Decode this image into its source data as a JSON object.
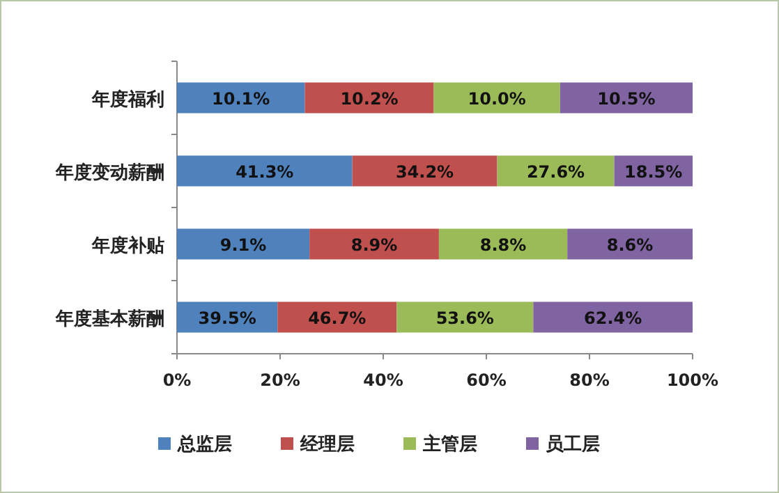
{
  "chart_data": {
    "type": "bar",
    "orientation": "horizontal",
    "stacked": true,
    "categories": [
      "年度福利",
      "年度变动薪酬",
      "年度补贴",
      "年度基本薪酬"
    ],
    "series": [
      {
        "name": "总监层",
        "color": "#4f81bd",
        "values": [
          24.8,
          34.0,
          25.7,
          19.5
        ]
      },
      {
        "name": "经理层",
        "color": "#c0504d",
        "values": [
          25.0,
          28.1,
          25.1,
          23.1
        ]
      },
      {
        "name": "主管层",
        "color": "#9bbb59",
        "values": [
          24.5,
          22.7,
          24.9,
          26.5
        ]
      },
      {
        "name": "员工层",
        "color": "#8064a2",
        "values": [
          25.7,
          15.2,
          24.3,
          30.9
        ]
      }
    ],
    "annotations": [
      "10.1%",
      "10.2%",
      "10.0%",
      "10.5%",
      "41.3%",
      "34.2%",
      "27.6%",
      "18.5%",
      "9.1%",
      "8.9%",
      "8.8%",
      "8.6%",
      "39.5%",
      "46.7%",
      "53.6%",
      "62.4%"
    ],
    "xlim": [
      0,
      100
    ],
    "xticks": [
      {
        "value": 0,
        "label": "0%"
      },
      {
        "value": 20,
        "label": "20%"
      },
      {
        "value": 40,
        "label": "40%"
      },
      {
        "value": 60,
        "label": "60%"
      },
      {
        "value": 80,
        "label": "80%"
      },
      {
        "value": 100,
        "label": "100%"
      }
    ],
    "legend": "bottom"
  }
}
